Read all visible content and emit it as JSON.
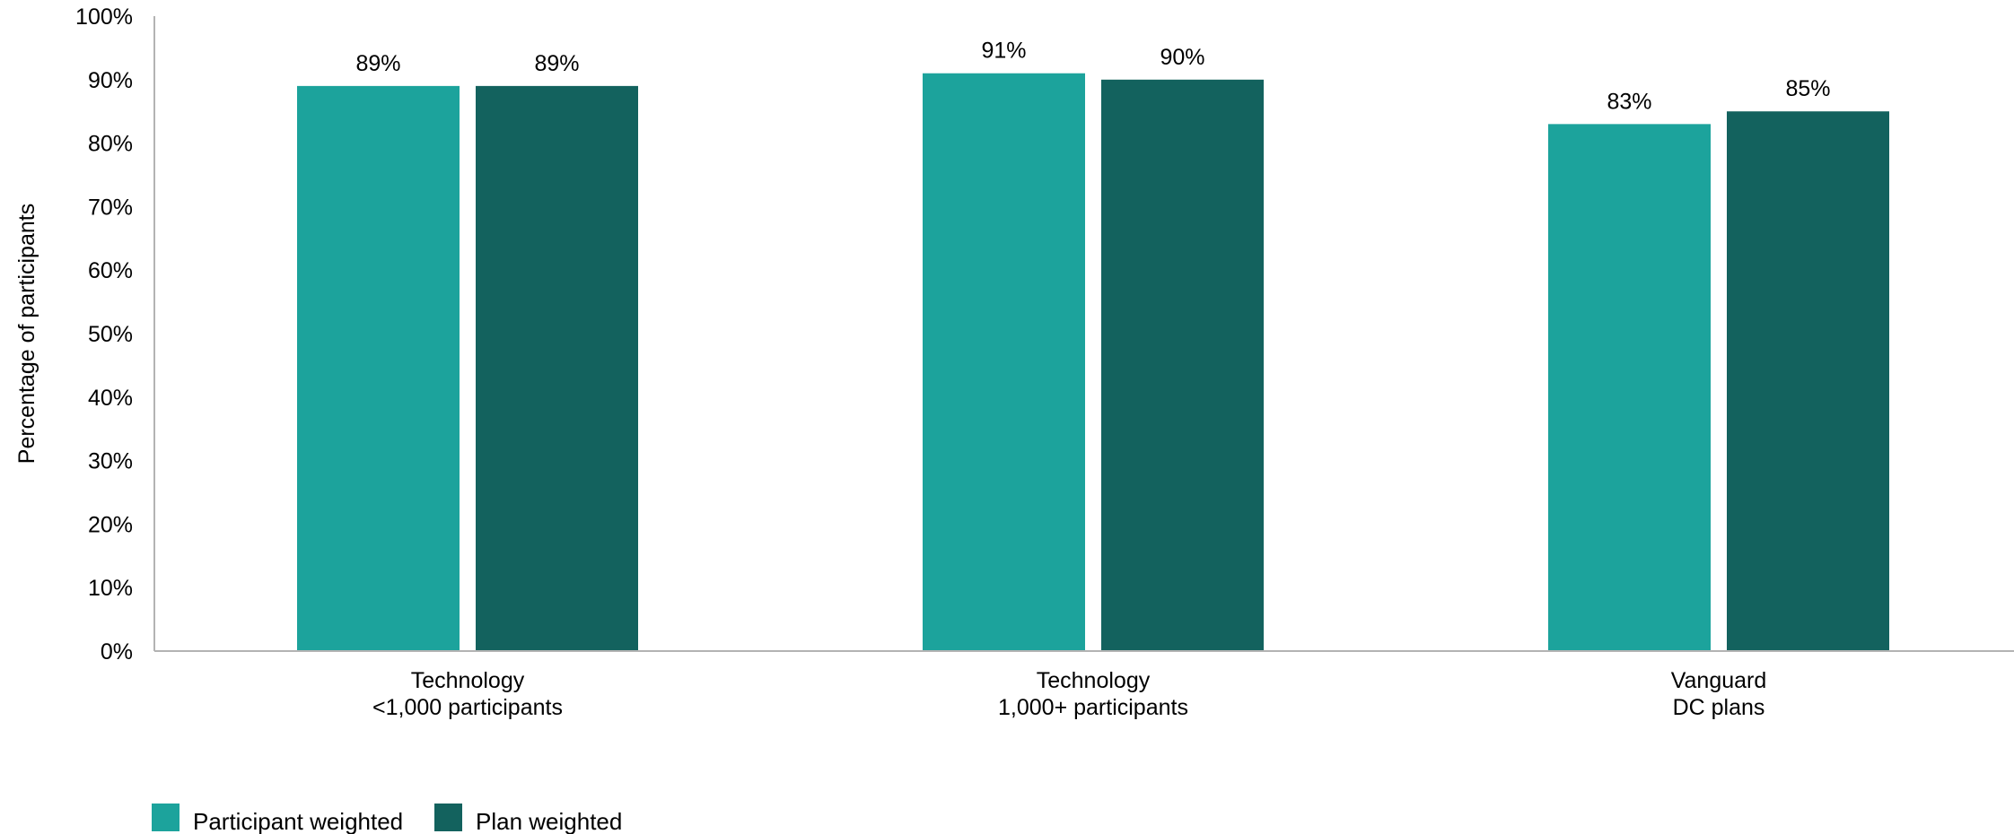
{
  "chart_data": {
    "type": "bar",
    "title": "",
    "xlabel": "",
    "ylabel": "Percentage of participants",
    "ylim": [
      0,
      100
    ],
    "yticks": [
      "0%",
      "10%",
      "20%",
      "30%",
      "40%",
      "50%",
      "60%",
      "70%",
      "80%",
      "90%",
      "100%"
    ],
    "categories": [
      [
        "Technology",
        "<1,000 participants"
      ],
      [
        "Technology",
        "1,000+ participants"
      ],
      [
        "Vanguard",
        "DC plans"
      ]
    ],
    "series": [
      {
        "name": "Participant weighted",
        "color": "#1ca39c",
        "values": [
          89,
          91,
          83
        ],
        "labels": [
          "89%",
          "91%",
          "83%"
        ]
      },
      {
        "name": "Plan weighted",
        "color": "#13625e",
        "values": [
          89,
          90,
          85
        ],
        "labels": [
          "89%",
          "90%",
          "85%"
        ]
      }
    ],
    "legend_position": "bottom-left",
    "grid": false
  }
}
